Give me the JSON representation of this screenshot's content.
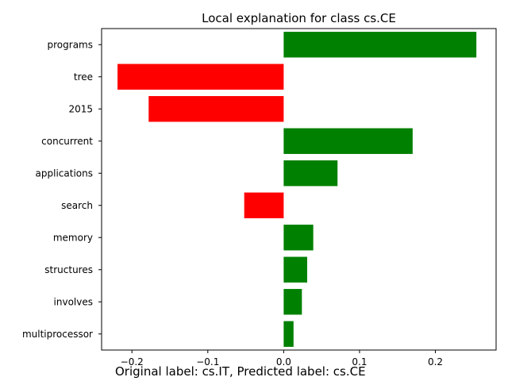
{
  "chart_data": {
    "type": "bar",
    "orientation": "horizontal",
    "title": "Local explanation for class cs.CE",
    "xlabel": "",
    "ylabel": "",
    "categories": [
      "programs",
      "tree",
      "2015",
      "concurrent",
      "applications",
      "search",
      "memory",
      "structures",
      "involves",
      "multiprocessor"
    ],
    "values": [
      0.254,
      -0.219,
      -0.178,
      0.17,
      0.071,
      -0.052,
      0.039,
      0.031,
      0.024,
      0.013
    ],
    "xlim": [
      -0.24,
      0.28
    ],
    "xticks": [
      -0.2,
      -0.1,
      0.0,
      0.1,
      0.2
    ],
    "xtick_labels": [
      "−0.2",
      "−0.1",
      "0.0",
      "0.1",
      "0.2"
    ],
    "grid": false,
    "positive_color": "#008000",
    "negative_color": "#ff0000"
  },
  "caption": "Original label: cs.IT, Predicted label: cs.CE"
}
